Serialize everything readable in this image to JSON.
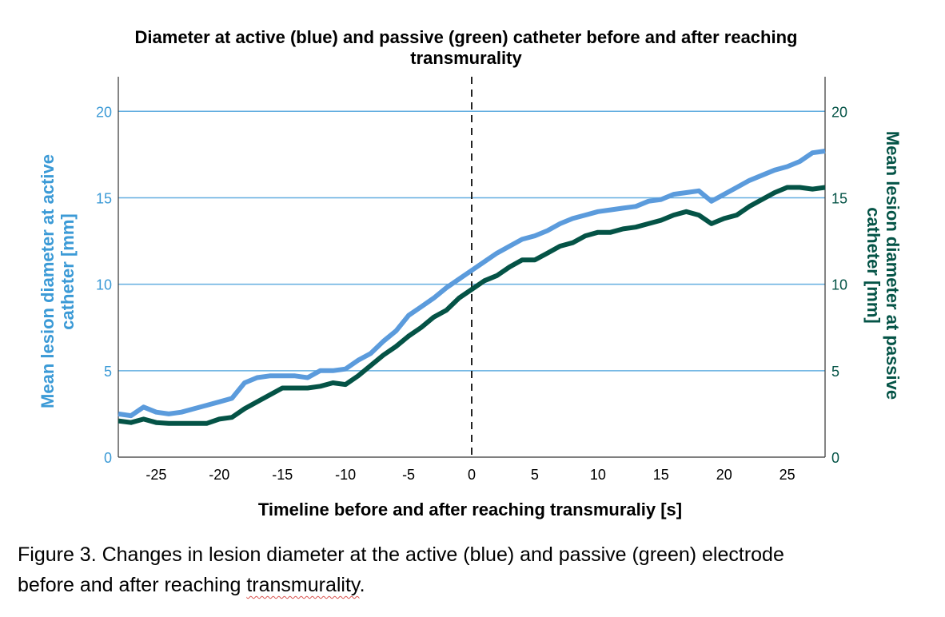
{
  "chart_data": {
    "type": "line",
    "title_line1": "Diameter at active (blue) and passive (green) catheter before and after reaching",
    "title_line2": "transmurality",
    "xlabel": "Timeline before and after reaching transmuraliy [s]",
    "ylabel_left_line1": "Mean lesion diameter at active",
    "ylabel_left_line2": "catheter [mm]",
    "ylabel_right_line1": "Mean lesion diameter at passive",
    "ylabel_right_line2": "catheter [mm]",
    "xlim": [
      -28,
      28
    ],
    "ylim": [
      0,
      22
    ],
    "x_ticks": [
      -25,
      -20,
      -15,
      -10,
      -5,
      0,
      5,
      10,
      15,
      20,
      25
    ],
    "y_ticks": [
      0,
      5,
      10,
      15,
      20
    ],
    "grid": "horizontal",
    "reference_line_x": 0,
    "colors": {
      "active": "#5b9bdc",
      "passive": "#045346",
      "grid": "#63aee0",
      "left_axis_text": "#3b9ad6",
      "right_axis_text": "#045346"
    },
    "series": [
      {
        "key": "active",
        "x": [
          -28,
          -27,
          -26,
          -25,
          -24,
          -23,
          -22,
          -21,
          -20,
          -19,
          -18,
          -17,
          -16,
          -15,
          -14,
          -13,
          -12,
          -11,
          -10,
          -9,
          -8,
          -7,
          -6,
          -5,
          -4,
          -3,
          -2,
          -1,
          0,
          1,
          2,
          3,
          4,
          5,
          6,
          7,
          8,
          9,
          10,
          11,
          12,
          13,
          14,
          15,
          16,
          17,
          18,
          19,
          20,
          21,
          22,
          23,
          24,
          25,
          26,
          27,
          28
        ],
        "values": [
          2.5,
          2.4,
          2.9,
          2.6,
          2.5,
          2.6,
          2.8,
          3.0,
          3.2,
          3.4,
          4.3,
          4.6,
          4.7,
          4.7,
          4.7,
          4.6,
          5.0,
          5.0,
          5.1,
          5.6,
          6.0,
          6.7,
          7.3,
          8.2,
          8.7,
          9.2,
          9.8,
          10.3,
          10.8,
          11.3,
          11.8,
          12.2,
          12.6,
          12.8,
          13.1,
          13.5,
          13.8,
          14.0,
          14.2,
          14.3,
          14.4,
          14.5,
          14.8,
          14.9,
          15.2,
          15.3,
          15.4,
          14.8,
          15.2,
          15.6,
          16.0,
          16.3,
          16.6,
          16.8,
          17.1,
          17.6,
          17.7
        ]
      },
      {
        "key": "passive",
        "x": [
          -28,
          -27,
          -26,
          -25,
          -24,
          -23,
          -22,
          -21,
          -20,
          -19,
          -18,
          -17,
          -16,
          -15,
          -14,
          -13,
          -12,
          -11,
          -10,
          -9,
          -8,
          -7,
          -6,
          -5,
          -4,
          -3,
          -2,
          -1,
          0,
          1,
          2,
          3,
          4,
          5,
          6,
          7,
          8,
          9,
          10,
          11,
          12,
          13,
          14,
          15,
          16,
          17,
          18,
          19,
          20,
          21,
          22,
          23,
          24,
          25,
          26,
          27,
          28
        ],
        "values": [
          2.1,
          2.0,
          2.2,
          2.0,
          1.95,
          1.95,
          1.95,
          1.95,
          2.2,
          2.3,
          2.8,
          3.2,
          3.6,
          4.0,
          4.0,
          4.0,
          4.1,
          4.3,
          4.2,
          4.7,
          5.3,
          5.9,
          6.4,
          7.0,
          7.5,
          8.1,
          8.5,
          9.2,
          9.7,
          10.2,
          10.5,
          11.0,
          11.4,
          11.4,
          11.8,
          12.2,
          12.4,
          12.8,
          13.0,
          13.0,
          13.2,
          13.3,
          13.5,
          13.7,
          14.0,
          14.2,
          14.0,
          13.5,
          13.8,
          14.0,
          14.5,
          14.9,
          15.3,
          15.6,
          15.6,
          15.5,
          15.6
        ]
      }
    ]
  },
  "caption": {
    "text_line1": "Figure 3. Changes in lesion diameter at the active (blue) and passive (green) electrode",
    "text_line2_before": "before and after reaching ",
    "text_line2_word": "transmurality",
    "text_line2_after": "."
  }
}
